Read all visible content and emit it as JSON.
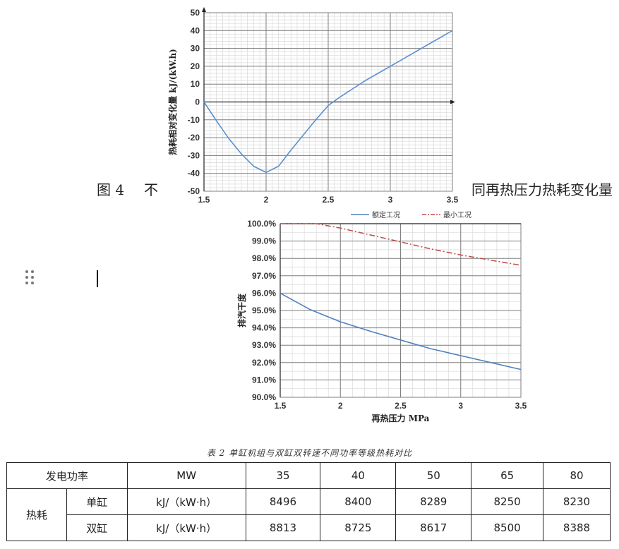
{
  "chart_data": [
    {
      "type": "line",
      "ylabel": "热耗相对变化量 kJ/(kW.h)",
      "xlim": [
        1.5,
        3.5
      ],
      "ylim": [
        -50,
        50
      ],
      "x_ticks": [
        "1.5",
        "2",
        "2.5",
        "3",
        "3.5"
      ],
      "y_ticks": [
        "50",
        "40",
        "30",
        "20",
        "10",
        "0",
        "-10",
        "-20",
        "-30",
        "-40",
        "-50"
      ],
      "grid": true,
      "series": [
        {
          "name": "",
          "color": "#5b8fcf",
          "x": [
            1.5,
            1.6,
            1.7,
            1.8,
            1.9,
            2.0,
            2.1,
            2.2,
            2.3,
            2.4,
            2.5,
            2.55,
            2.6,
            2.7,
            2.8,
            2.9,
            3.0,
            3.1,
            3.2,
            3.3,
            3.4,
            3.5
          ],
          "y": [
            0,
            -10.5,
            -20.5,
            -29,
            -36,
            -39.5,
            -36,
            -27,
            -18.5,
            -10,
            -2,
            0.5,
            3,
            7.5,
            12,
            16,
            20,
            24,
            28,
            32,
            36,
            40
          ]
        }
      ]
    },
    {
      "type": "line",
      "xlabel": "再热压力 MPa",
      "ylabel": "排汽干度",
      "xlim": [
        1.5,
        3.5
      ],
      "ylim": [
        90,
        100
      ],
      "x_ticks": [
        "1.5",
        "2",
        "2.5",
        "3",
        "3.5"
      ],
      "y_ticks": [
        "100.0%",
        "99.0%",
        "98.0%",
        "97.0%",
        "96.0%",
        "95.0%",
        "94.0%",
        "93.0%",
        "92.0%",
        "91.0%",
        "90.0%"
      ],
      "grid": true,
      "legend": "top",
      "series": [
        {
          "name": "额定工况",
          "color": "#4f81bd",
          "dash": "solid",
          "x": [
            1.5,
            1.75,
            2.0,
            2.25,
            2.5,
            2.75,
            3.0,
            3.25,
            3.5
          ],
          "y": [
            96.0,
            95.05,
            94.35,
            93.8,
            93.3,
            92.8,
            92.4,
            92.0,
            91.6
          ]
        },
        {
          "name": "最小工况",
          "color": "#c0504d",
          "dash": "dashdot",
          "x": [
            1.5,
            1.7,
            1.8,
            2.0,
            2.25,
            2.5,
            2.75,
            3.0,
            3.25,
            3.5
          ],
          "y": [
            100.0,
            100.0,
            100.0,
            99.75,
            99.35,
            98.95,
            98.55,
            98.2,
            97.9,
            97.6
          ]
        }
      ]
    }
  ],
  "doc": {
    "fig_caption_prefix": "图 4",
    "fig_caption_mid": "不",
    "fig_caption_suffix": "同再热压力热耗变化量",
    "table_title": "表 2 单缸机组与双缸双转速不同功率等级热耗对比"
  },
  "table": {
    "row1": {
      "label": "发电功率",
      "unit": "MW",
      "values": [
        "35",
        "40",
        "50",
        "65",
        "80"
      ]
    },
    "group_label": "热耗",
    "row2": {
      "label": "单缸",
      "unit": "kJ/（kW·h）",
      "values": [
        "8496",
        "8400",
        "8289",
        "8250",
        "8230"
      ]
    },
    "row3": {
      "label": "双缸",
      "unit": "kJ/（kW·h）",
      "values": [
        "8813",
        "8725",
        "8617",
        "8500",
        "8388"
      ]
    }
  }
}
